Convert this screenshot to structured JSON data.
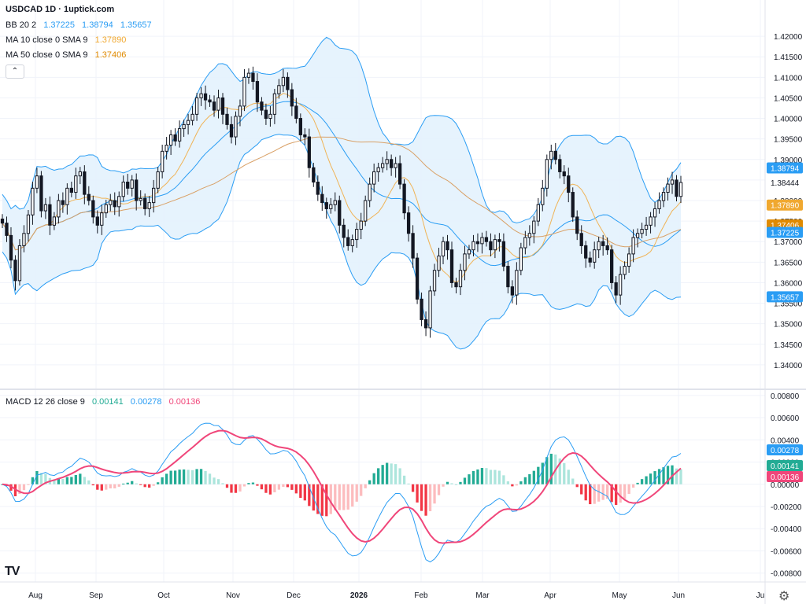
{
  "header": {
    "title": "USDCAD 1D · 1uptick.com",
    "bb": {
      "label": "BB 20 2",
      "basis": "1.37225",
      "upper": "1.38794",
      "lower": "1.35657"
    },
    "ma10": {
      "label": "MA 10 close 0 SMA 9",
      "value": "1.37890"
    },
    "ma50": {
      "label": "MA 50 close 0 SMA 9",
      "value": "1.37406"
    },
    "macd": {
      "label": "MACD 12 26 close 9",
      "hist": "0.00141",
      "macd": "0.00278",
      "signal": "0.00136"
    }
  },
  "collapse_glyph": "⌃",
  "logo_text": "TV",
  "settings_glyph": "⚙",
  "colors": {
    "up": "#ffffff",
    "down": "#131722",
    "bb_line": "#2a9df4",
    "bb_fill": "#e3f2fd",
    "ma10": "#f0b356",
    "ma50": "#d9a066",
    "macd_line": "#2a9df4",
    "signal_line": "#f0467a",
    "hist_up_strong": "#22ab94",
    "hist_up_weak": "#ace5dc",
    "hist_down_strong": "#f23645",
    "hist_down_weak": "#fcbcbe",
    "grid": "#f0f3fa",
    "axis_text": "#131722"
  },
  "chart_data": {
    "type": "candlestick",
    "symbol": "USDCAD",
    "interval": "1D",
    "x_ticks": [
      "Aug",
      "Sep",
      "Oct",
      "Nov",
      "Dec",
      "2026",
      "Feb",
      "Mar",
      "Apr",
      "May",
      "Jun",
      "Ju"
    ],
    "price_axis": {
      "ylim": [
        1.335,
        1.425
      ],
      "ticks": [
        "1.42000",
        "1.41500",
        "1.41000",
        "1.40500",
        "1.40000",
        "1.39500",
        "1.39000",
        "1.38500",
        "1.38000",
        "1.37500",
        "1.37000",
        "1.36500",
        "1.36000",
        "1.35500",
        "1.35000",
        "1.34500",
        "1.34000"
      ]
    },
    "price_labels": [
      {
        "text": "1.38794",
        "kind": "bb_upper",
        "value": 1.38794
      },
      {
        "text": "1.38444",
        "kind": "last",
        "value": 1.38444
      },
      {
        "text": "1.37890",
        "kind": "ma10",
        "value": 1.3789
      },
      {
        "text": "1.37406",
        "kind": "ma50",
        "value": 1.37406
      },
      {
        "text": "1.37225",
        "kind": "bb_basis",
        "value": 1.37225
      },
      {
        "text": "1.35657",
        "kind": "bb_lower",
        "value": 1.35657
      }
    ],
    "close": [
      1.3745,
      1.3715,
      1.3655,
      1.3605,
      1.369,
      1.372,
      1.3765,
      1.383,
      1.386,
      1.3775,
      1.379,
      1.374,
      1.376,
      1.38,
      1.379,
      1.383,
      1.382,
      1.386,
      1.387,
      1.3815,
      1.38,
      1.376,
      1.374,
      1.377,
      1.379,
      1.38,
      1.3785,
      1.381,
      1.3845,
      1.383,
      1.385,
      1.38,
      1.3805,
      1.378,
      1.3795,
      1.383,
      1.387,
      1.392,
      1.3935,
      1.396,
      1.3945,
      1.3975,
      1.3985,
      1.3995,
      1.401,
      1.405,
      1.406,
      1.4045,
      1.404,
      1.402,
      1.405,
      1.401,
      1.3985,
      1.3955,
      1.4005,
      1.403,
      1.41,
      1.411,
      1.409,
      1.404,
      1.402,
      1.4,
      1.401,
      1.406,
      1.408,
      1.41,
      1.407,
      1.403,
      1.4,
      1.396,
      1.3955,
      1.388,
      1.3845,
      1.3815,
      1.3795,
      1.378,
      1.379,
      1.38,
      1.374,
      1.371,
      1.369,
      1.3705,
      1.373,
      1.375,
      1.38,
      1.384,
      1.387,
      1.388,
      1.389,
      1.39,
      1.388,
      1.389,
      1.384,
      1.377,
      1.372,
      1.366,
      1.356,
      1.351,
      1.349,
      1.358,
      1.363,
      1.3665,
      1.37,
      1.368,
      1.36,
      1.359,
      1.363,
      1.367,
      1.368,
      1.37,
      1.3695,
      1.371,
      1.37,
      1.368,
      1.3705,
      1.37,
      1.364,
      1.359,
      1.357,
      1.363,
      1.3685,
      1.371,
      1.372,
      1.375,
      1.379,
      1.383,
      1.39,
      1.392,
      1.39,
      1.387,
      1.386,
      1.382,
      1.376,
      1.372,
      1.369,
      1.366,
      1.365,
      1.368,
      1.37,
      1.369,
      1.368,
      1.36,
      1.357,
      1.362,
      1.364,
      1.367,
      1.371,
      1.372,
      1.373,
      1.374,
      1.376,
      1.378,
      1.38,
      1.382,
      1.384,
      1.385,
      1.381,
      1.3844
    ],
    "ohlc_note": "Open = previous close; highs/lows add small wicks.",
    "bollinger": {
      "period": 20,
      "stddev": 2,
      "last_upper": 1.38794,
      "last_basis": 1.37225,
      "last_lower": 1.35657
    },
    "ma10": {
      "period": 10,
      "last": 1.3789
    },
    "ma50": {
      "period": 50,
      "last": 1.37406
    },
    "macd_pane": {
      "ylim": [
        -0.0088,
        0.0082
      ],
      "ticks": [
        "0.00800",
        "0.00600",
        "0.00400",
        "0.00200",
        "0.00000",
        "-0.00200",
        "-0.00400",
        "-0.00600",
        "-0.00800"
      ],
      "labels": [
        {
          "text": "0.00278",
          "kind": "macd",
          "value": 0.00278
        },
        {
          "text": "0.00141",
          "kind": "hist",
          "value": 0.00141
        },
        {
          "text": "0.00136",
          "kind": "signal",
          "value": 0.00136
        }
      ],
      "fast": 12,
      "slow": 26,
      "signal": 9
    }
  }
}
